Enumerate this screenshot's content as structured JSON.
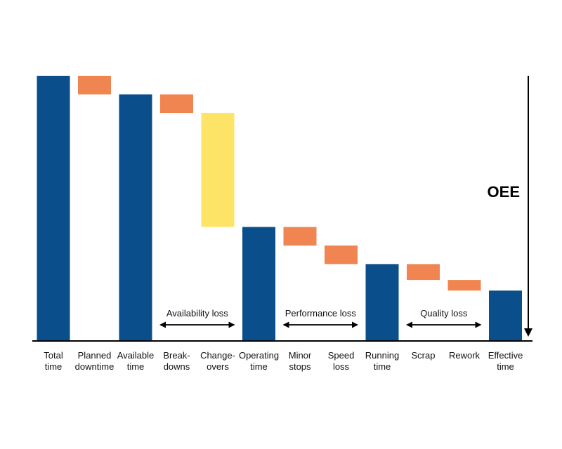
{
  "chart_data": {
    "type": "bar",
    "subtype": "waterfall",
    "categories": [
      [
        "Total",
        "time"
      ],
      [
        "Planned",
        "downtime"
      ],
      [
        "Available",
        "time"
      ],
      [
        "Break-",
        "downs"
      ],
      [
        "Change-",
        "overs"
      ],
      [
        "Operating",
        "time"
      ],
      [
        "Minor",
        "stops"
      ],
      [
        "Speed",
        "loss"
      ],
      [
        "Running",
        "time"
      ],
      [
        "Scrap"
      ],
      [
        "Rework"
      ],
      [
        "Effective",
        "time"
      ]
    ],
    "bars": [
      {
        "start": 0,
        "end": 100,
        "kind": "total"
      },
      {
        "start": 93,
        "end": 100,
        "kind": "loss"
      },
      {
        "start": 0,
        "end": 93,
        "kind": "total"
      },
      {
        "start": 86,
        "end": 93,
        "kind": "loss"
      },
      {
        "start": 43,
        "end": 86,
        "kind": "major-loss"
      },
      {
        "start": 0,
        "end": 43,
        "kind": "total"
      },
      {
        "start": 36,
        "end": 43,
        "kind": "loss"
      },
      {
        "start": 29,
        "end": 36,
        "kind": "loss"
      },
      {
        "start": 0,
        "end": 29,
        "kind": "total"
      },
      {
        "start": 23,
        "end": 29,
        "kind": "loss"
      },
      {
        "start": 19,
        "end": 23,
        "kind": "loss"
      },
      {
        "start": 0,
        "end": 19,
        "kind": "total"
      }
    ],
    "ylim": [
      0,
      100
    ],
    "groups": [
      {
        "label": "Availability loss",
        "from": 3,
        "to": 4
      },
      {
        "label": "Performance loss",
        "from": 6,
        "to": 7
      },
      {
        "label": "Quality loss",
        "from": 9,
        "to": 10
      }
    ],
    "annotation": "OEE",
    "grid": false,
    "colors": {
      "total": "#0a4f8c",
      "loss": "#f08552",
      "major-loss": "#fde467",
      "axis": "#000000"
    }
  }
}
